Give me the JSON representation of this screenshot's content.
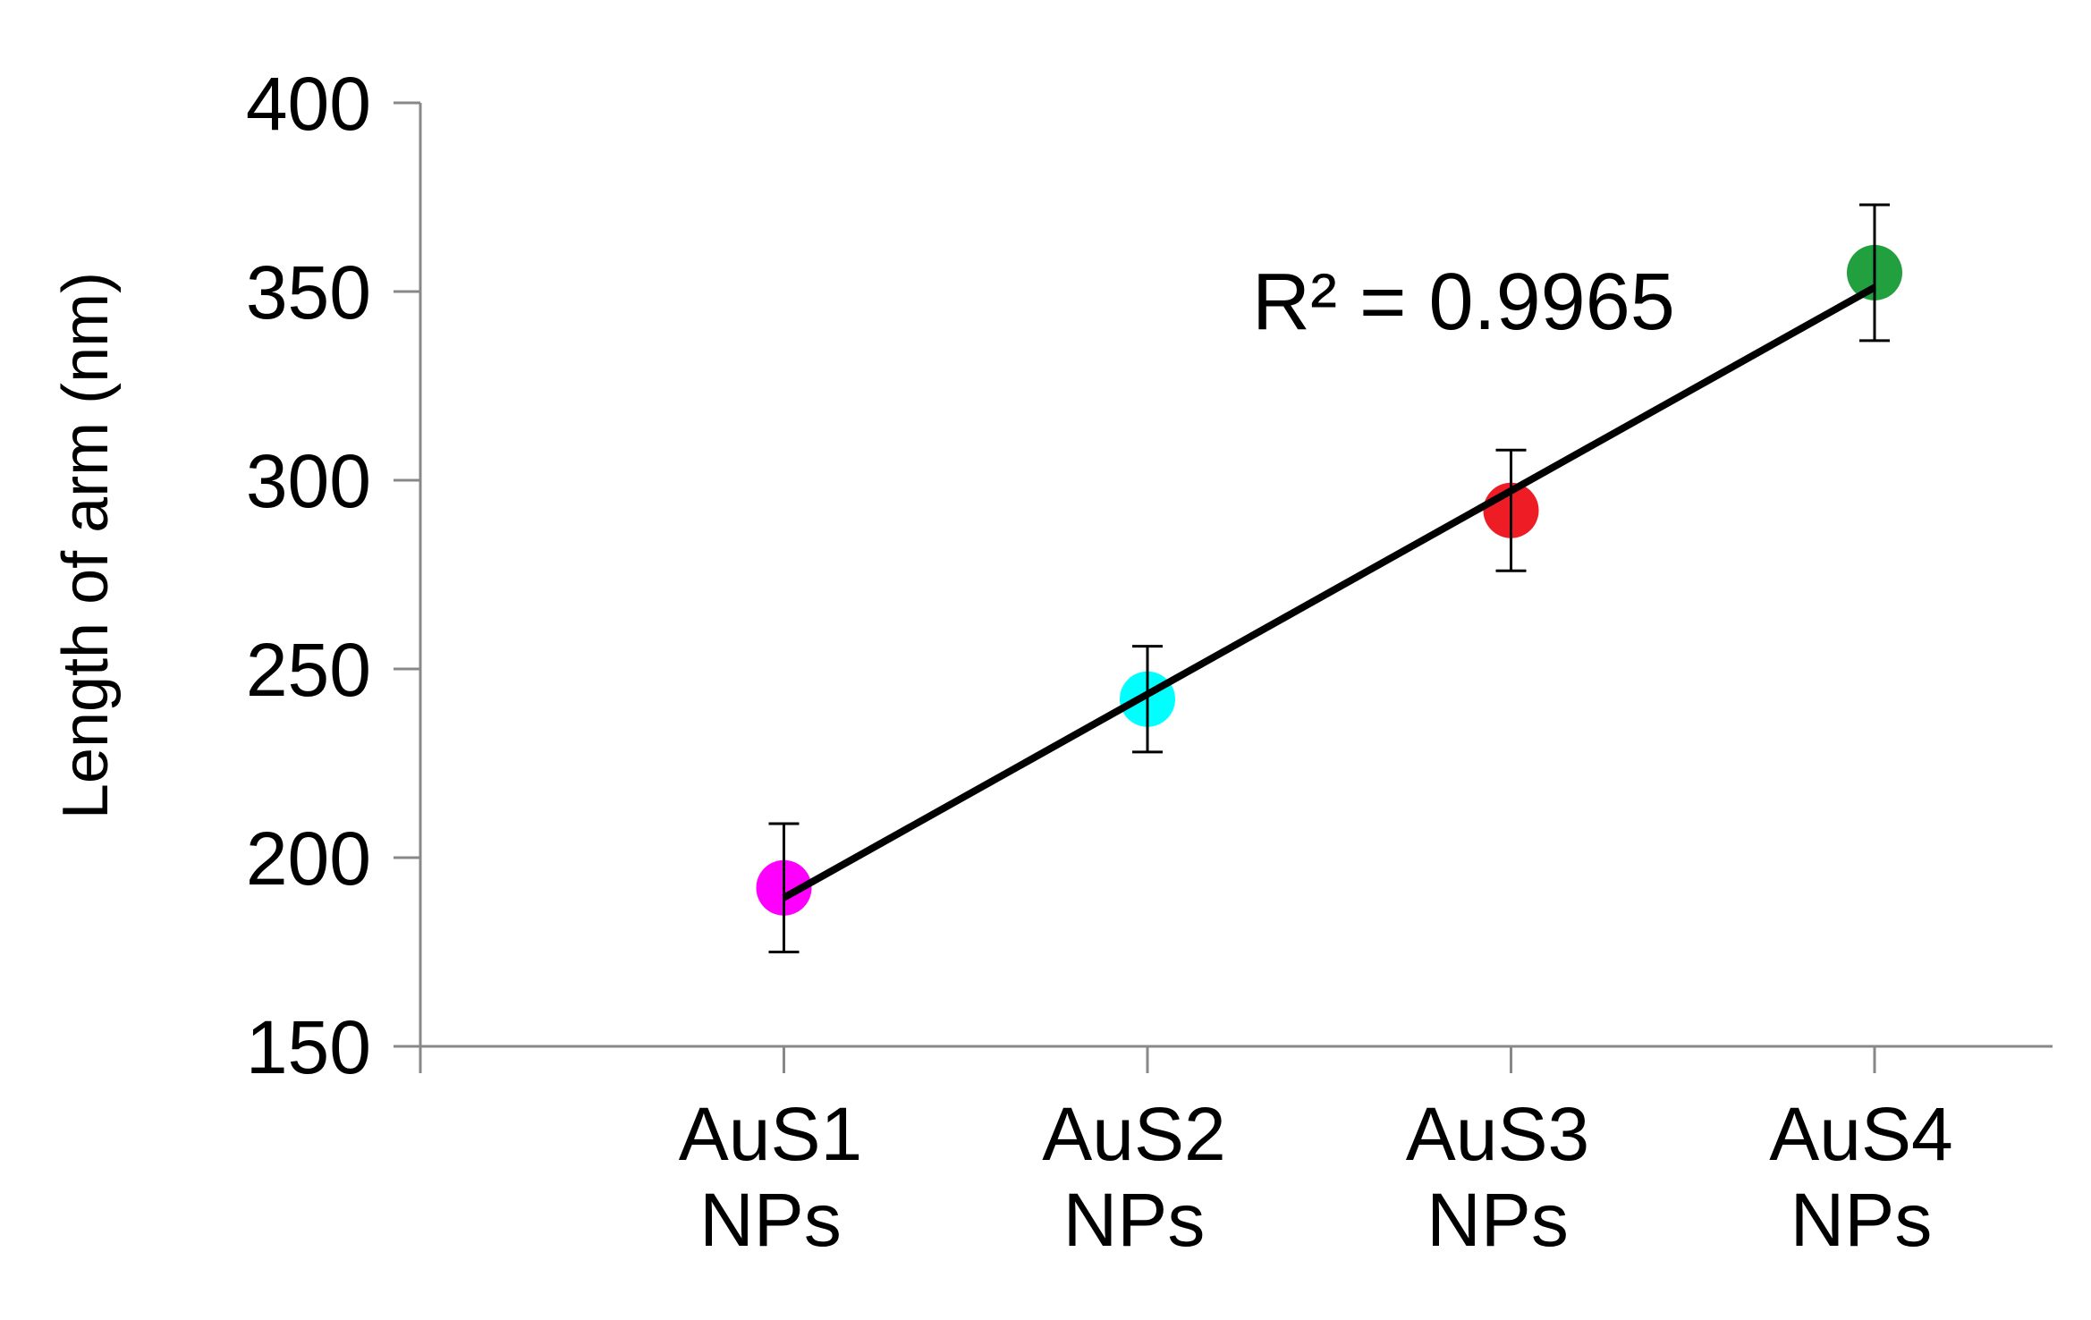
{
  "chart_data": {
    "type": "scatter",
    "y_label": "Length of arm (nm)",
    "categories": [
      "AuS1 NPs",
      "AuS2 NPs",
      "AuS3 NPs",
      "AuS4 NPs"
    ],
    "values": [
      192,
      242,
      292,
      355
    ],
    "errors": [
      17,
      14,
      16,
      18
    ],
    "colors": [
      "#ff00ff",
      "#00ffff",
      "#ee1c25",
      "#22a040"
    ],
    "ylim": [
      150,
      400
    ],
    "yticks": [
      150,
      200,
      250,
      300,
      350,
      400
    ],
    "trendline": {
      "type": "linear",
      "color": "#000000",
      "label": "R² = 0.9965"
    }
  }
}
